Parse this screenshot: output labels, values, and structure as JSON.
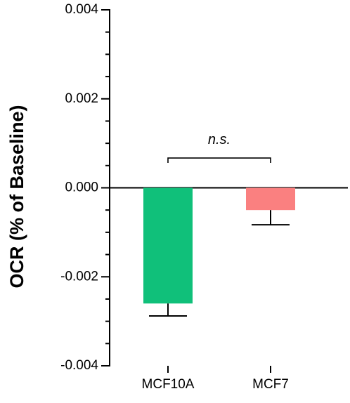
{
  "chart_data": {
    "type": "bar",
    "title": "",
    "xlabel": "",
    "ylabel": "OCR (% of Baseline)",
    "categories": [
      "MCF10A",
      "MCF7"
    ],
    "values": [
      -0.0026,
      -0.0005
    ],
    "errors": [
      0.00028,
      0.00033
    ],
    "colors": [
      "#10c07a",
      "#fa8080"
    ],
    "ylim": [
      -0.004,
      0.004
    ],
    "yticks": [
      "0.004",
      "0.002",
      "0.000",
      "-0.002",
      "-0.004"
    ],
    "ytick_values": [
      0.004,
      0.002,
      0.0,
      -0.002,
      -0.004
    ],
    "minor_tick_step": 0.0005,
    "grid": false,
    "annotations": [
      {
        "text": "n.s.",
        "between": [
          "MCF10A",
          "MCF7"
        ],
        "y": 0.00067
      }
    ]
  }
}
